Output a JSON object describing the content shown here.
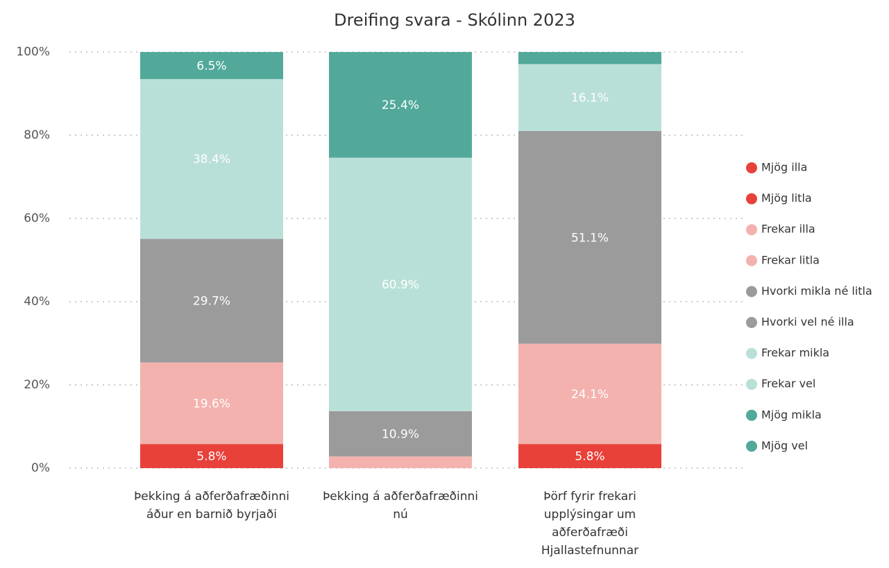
{
  "chart_data": {
    "type": "stacked_bar",
    "title": "Dreifing svara - Skólinn 2023",
    "categories": [
      "Þekking á aðferðafræðinni áður en barnið byrjaði",
      "Þekking á aðferðafræðinni nú",
      "Þörf fyrir frekari upplýsingar um aðferðafræði Hjallastefnunnar"
    ],
    "series": [
      {
        "name": "Mjög illa",
        "color": "#e8413a",
        "values": [
          5.8,
          null,
          null
        ],
        "value_labels": [
          "5.8%",
          null,
          null
        ]
      },
      {
        "name": "Mjög litla",
        "color": "#e8413a",
        "values": [
          null,
          null,
          5.8
        ],
        "value_labels": [
          null,
          null,
          "5.8%"
        ]
      },
      {
        "name": "Frekar illa",
        "color": "#f4b2ae",
        "values": [
          19.6,
          2.8,
          null
        ],
        "value_labels": [
          "19.6%",
          null,
          null
        ]
      },
      {
        "name": "Frekar litla",
        "color": "#f4b2ae",
        "values": [
          null,
          null,
          24.1
        ],
        "value_labels": [
          null,
          null,
          "24.1%"
        ]
      },
      {
        "name": "Hvorki mikla né litla",
        "color": "#9b9b9b",
        "values": [
          null,
          null,
          51.1
        ],
        "value_labels": [
          null,
          null,
          "51.1%"
        ]
      },
      {
        "name": "Hvorki vel né illa",
        "color": "#9b9b9b",
        "values": [
          29.7,
          10.9,
          null
        ],
        "value_labels": [
          "29.7%",
          "10.9%",
          null
        ]
      },
      {
        "name": "Frekar mikla",
        "color": "#b9e0d8",
        "values": [
          null,
          null,
          16.1
        ],
        "value_labels": [
          null,
          null,
          "16.1%"
        ]
      },
      {
        "name": "Frekar vel",
        "color": "#b9e0d8",
        "values": [
          38.4,
          60.9,
          null
        ],
        "value_labels": [
          "38.4%",
          "60.9%",
          null
        ]
      },
      {
        "name": "Mjög mikla",
        "color": "#52a99a",
        "values": [
          null,
          null,
          2.9
        ],
        "value_labels": [
          null,
          null,
          null
        ]
      },
      {
        "name": "Mjög vel",
        "color": "#52a99a",
        "values": [
          6.5,
          25.4,
          null
        ],
        "value_labels": [
          "6.5%",
          "25.4%",
          null
        ]
      }
    ],
    "ylim": [
      0,
      100
    ],
    "yticks": [
      {
        "value": 0,
        "label": "0%"
      },
      {
        "value": 20,
        "label": "20%"
      },
      {
        "value": 40,
        "label": "40%"
      },
      {
        "value": 60,
        "label": "60%"
      },
      {
        "value": 80,
        "label": "80%"
      },
      {
        "value": 100,
        "label": "100%"
      }
    ],
    "grid": true,
    "legend": "right"
  }
}
